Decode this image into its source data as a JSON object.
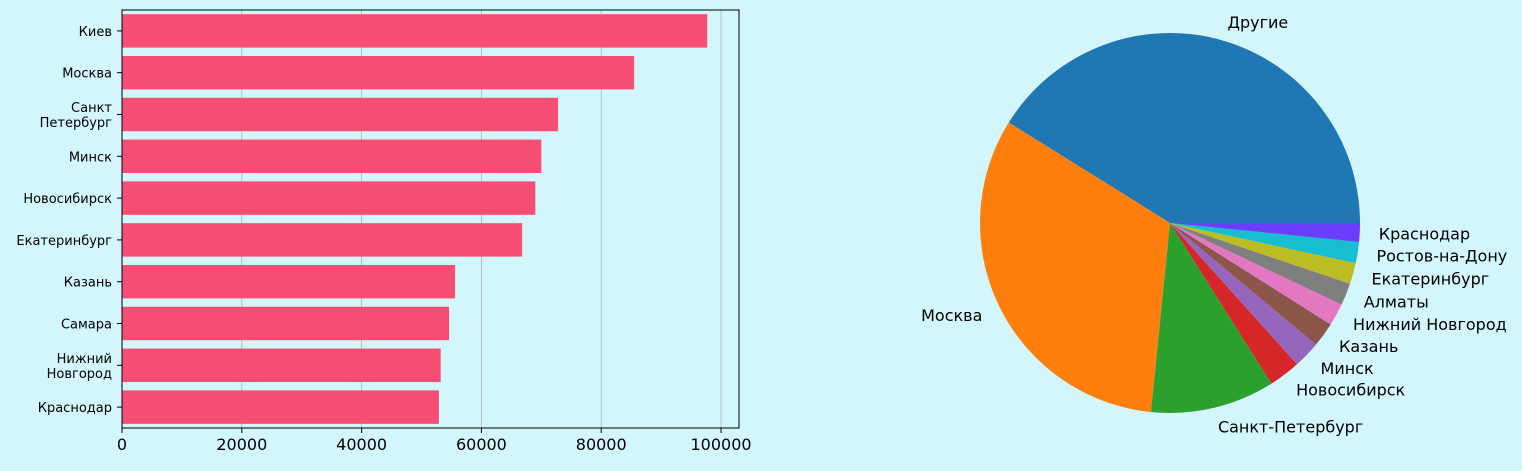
{
  "chart_data": [
    {
      "type": "bar",
      "orientation": "horizontal",
      "categories": [
        "Киев",
        "Москва",
        "Санкт\nПетербург",
        "Минск",
        "Новосибирск",
        "Екатеринбург",
        "Казань",
        "Самара",
        "Нижний\nНовгород",
        "Краснодар"
      ],
      "values": [
        97700,
        85500,
        72800,
        70000,
        69000,
        66800,
        55600,
        54600,
        53200,
        52900
      ],
      "xlim": [
        0,
        103000
      ],
      "xticks": [
        0,
        20000,
        40000,
        60000,
        80000,
        100000
      ],
      "xtick_labels": [
        "0",
        "20000",
        "40000",
        "60000",
        "80000",
        "100000"
      ],
      "grid": "vertical",
      "color": "#f74f73",
      "title": "",
      "xlabel": "",
      "ylabel": ""
    },
    {
      "type": "pie",
      "labels": [
        "Другие",
        "Москва",
        "Санкт-Петербург",
        "Новосибирск",
        "Минск",
        "Казань",
        "Нижний Новгород",
        "Алматы",
        "Екатеринбург",
        "Ростов-на-Дону",
        "Краснодар"
      ],
      "values": [
        41.3,
        32.4,
        10.6,
        2.7,
        2.3,
        2.1,
        1.9,
        1.9,
        1.8,
        1.8,
        1.6
      ],
      "colors": [
        "#1f77b4",
        "#ff7f0e",
        "#2ca02c",
        "#d62728",
        "#9467bd",
        "#8c564b",
        "#e377c2",
        "#7f7f7f",
        "#bcbd22",
        "#17becf",
        "#6b3dfc"
      ],
      "start_angle": 0,
      "direction": "counterclockwise"
    }
  ]
}
